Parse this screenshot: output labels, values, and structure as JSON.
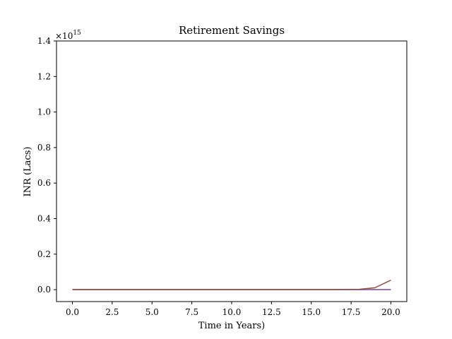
{
  "chart_data": {
    "type": "line",
    "title": "Retirement Savings",
    "xlabel": "Time in Years)",
    "ylabel": "INR (Lacs)",
    "y_multiplier_label": "×10",
    "y_multiplier_exponent": "15",
    "xlim": [
      -1,
      21
    ],
    "ylim": [
      -0.067,
      1.4
    ],
    "grid": false,
    "legend": "none",
    "xticks": [
      0,
      2.5,
      5,
      7.5,
      10,
      12.5,
      15,
      17.5,
      20
    ],
    "xtick_labels": [
      "0.0",
      "2.5",
      "5.0",
      "7.5",
      "10.0",
      "12.5",
      "15.0",
      "17.5",
      "20.0"
    ],
    "yticks": [
      0,
      0.2,
      0.4,
      0.6,
      0.8,
      1.0,
      1.2,
      1.4
    ],
    "ytick_labels": [
      "0.0",
      "0.2",
      "0.4",
      "0.6",
      "0.8",
      "1.0",
      "1.2",
      "1.4"
    ],
    "x": [
      0,
      1,
      2,
      3,
      4,
      5,
      6,
      7,
      8,
      9,
      10,
      11,
      12,
      13,
      14,
      15,
      16,
      17,
      18,
      19,
      20
    ],
    "series": [
      {
        "color": "#1f77b4",
        "values": [
          0,
          0,
          0,
          0,
          0,
          0,
          0,
          0,
          0,
          0,
          0,
          0,
          0,
          0,
          0,
          0,
          0,
          0,
          0,
          0,
          0
        ]
      },
      {
        "color": "#ff7f0e",
        "values": [
          0,
          0,
          0,
          0,
          0,
          0,
          0,
          0,
          0,
          0,
          0,
          0,
          0,
          0,
          0,
          0,
          0,
          0,
          0,
          0,
          0
        ]
      },
      {
        "color": "#2ca02c",
        "values": [
          0,
          0,
          0,
          0,
          0,
          0,
          0,
          0,
          0,
          0,
          0,
          0,
          0,
          0,
          0,
          0,
          0,
          0,
          0,
          0,
          0
        ]
      },
      {
        "color": "#d62728",
        "values": [
          0,
          0,
          0,
          0,
          0,
          0,
          0,
          0,
          0,
          0,
          0,
          0,
          0,
          0,
          0,
          0,
          0,
          0,
          0,
          0,
          0
        ]
      },
      {
        "color": "#9467bd",
        "values": [
          0,
          0,
          0,
          0,
          0,
          0,
          0,
          0,
          0,
          0,
          0,
          0,
          0,
          0,
          0,
          0,
          0,
          0,
          0,
          0,
          0
        ]
      },
      {
        "color": "#8c564b",
        "values": [
          0,
          0,
          0,
          0,
          0,
          0,
          0,
          0,
          0,
          0,
          0,
          0,
          0,
          0,
          0,
          0,
          0,
          0.0003,
          0.0021,
          0.0107,
          0.0535
        ]
      }
    ]
  }
}
